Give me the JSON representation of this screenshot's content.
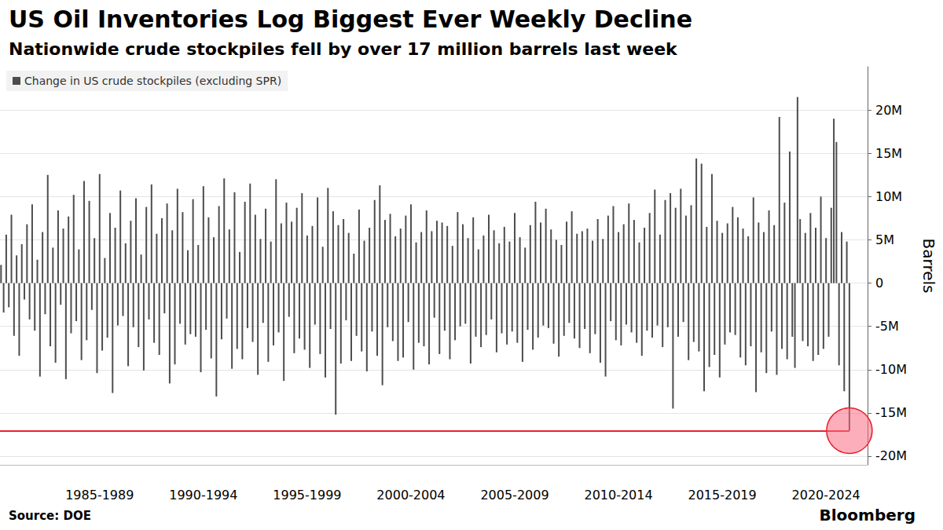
{
  "chart_data": {
    "type": "bar",
    "title": "US Oil Inventories Log Biggest Ever Weekly Decline",
    "subtitle": "Nationwide crude stockpiles fell by over 17 million barrels last week",
    "y_label": "Barrels",
    "source": "Source: DOE",
    "credit": "Bloomberg",
    "legend": "top-left",
    "grid": true,
    "xlim": [
      1982.7,
      2024.5
    ],
    "xticks": [
      {
        "value": 1987.5,
        "label": "1985-1989"
      },
      {
        "value": 1992.5,
        "label": "1990-1994"
      },
      {
        "value": 1997.5,
        "label": "1995-1999"
      },
      {
        "value": 2002.5,
        "label": "2000-2004"
      },
      {
        "value": 2007.5,
        "label": "2005-2009"
      },
      {
        "value": 2012.5,
        "label": "2010-2014"
      },
      {
        "value": 2017.5,
        "label": "2015-2019"
      },
      {
        "value": 2022.5,
        "label": "2020-2024"
      }
    ],
    "ylim": [
      -21000000,
      25000000
    ],
    "yticks": [
      {
        "value": -20000000,
        "label": "-20M"
      },
      {
        "value": -15000000,
        "label": "-15M"
      },
      {
        "value": -10000000,
        "label": "-10M"
      },
      {
        "value": -5000000,
        "label": "-5M"
      },
      0,
      {
        "value": 5000000,
        "label": "5M"
      },
      {
        "value": 10000000,
        "label": "10M"
      },
      {
        "value": 15000000,
        "label": "15M"
      },
      {
        "value": 20000000,
        "label": "20M"
      }
    ],
    "x": [
      1982.75,
      1982.875,
      1983.0,
      1983.125,
      1983.25,
      1983.375,
      1983.5,
      1983.625,
      1983.75,
      1983.875,
      1984.0,
      1984.125,
      1984.25,
      1984.375,
      1984.5,
      1984.625,
      1984.75,
      1984.875,
      1985.0,
      1985.125,
      1985.25,
      1985.375,
      1985.5,
      1985.625,
      1985.75,
      1985.875,
      1986.0,
      1986.125,
      1986.25,
      1986.375,
      1986.5,
      1986.625,
      1986.75,
      1986.875,
      1987.0,
      1987.125,
      1987.25,
      1987.375,
      1987.5,
      1987.625,
      1987.75,
      1987.875,
      1988.0,
      1988.125,
      1988.25,
      1988.375,
      1988.5,
      1988.625,
      1988.75,
      1988.875,
      1989.0,
      1989.125,
      1989.25,
      1989.375,
      1989.5,
      1989.625,
      1989.75,
      1989.875,
      1990.0,
      1990.125,
      1990.25,
      1990.375,
      1990.5,
      1990.625,
      1990.75,
      1990.875,
      1991.0,
      1991.125,
      1991.25,
      1991.375,
      1991.5,
      1991.625,
      1991.75,
      1991.875,
      1992.0,
      1992.125,
      1992.25,
      1992.375,
      1992.5,
      1992.625,
      1992.75,
      1992.875,
      1993.0,
      1993.125,
      1993.25,
      1993.375,
      1993.5,
      1993.625,
      1993.75,
      1993.875,
      1994.0,
      1994.125,
      1994.25,
      1994.375,
      1994.5,
      1994.625,
      1994.75,
      1994.875,
      1995.0,
      1995.125,
      1995.25,
      1995.375,
      1995.5,
      1995.625,
      1995.75,
      1995.875,
      1996.0,
      1996.125,
      1996.25,
      1996.375,
      1996.5,
      1996.625,
      1996.75,
      1996.875,
      1997.0,
      1997.125,
      1997.25,
      1997.375,
      1997.5,
      1997.625,
      1997.75,
      1997.875,
      1998.0,
      1998.125,
      1998.25,
      1998.375,
      1998.5,
      1998.625,
      1998.75,
      1998.875,
      1999.0,
      1999.125,
      1999.25,
      1999.375,
      1999.5,
      1999.625,
      1999.75,
      1999.875,
      2000.0,
      2000.125,
      2000.25,
      2000.375,
      2000.5,
      2000.625,
      2000.75,
      2000.875,
      2001.0,
      2001.125,
      2001.25,
      2001.375,
      2001.5,
      2001.625,
      2001.75,
      2001.875,
      2002.0,
      2002.125,
      2002.25,
      2002.375,
      2002.5,
      2002.625,
      2002.75,
      2002.875,
      2003.0,
      2003.125,
      2003.25,
      2003.375,
      2003.5,
      2003.625,
      2003.75,
      2003.875,
      2004.0,
      2004.125,
      2004.25,
      2004.375,
      2004.5,
      2004.625,
      2004.75,
      2004.875,
      2005.0,
      2005.125,
      2005.25,
      2005.375,
      2005.5,
      2005.625,
      2005.75,
      2005.875,
      2006.0,
      2006.125,
      2006.25,
      2006.375,
      2006.5,
      2006.625,
      2006.75,
      2006.875,
      2007.0,
      2007.125,
      2007.25,
      2007.375,
      2007.5,
      2007.625,
      2007.75,
      2007.875,
      2008.0,
      2008.125,
      2008.25,
      2008.375,
      2008.5,
      2008.625,
      2008.75,
      2008.875,
      2009.0,
      2009.125,
      2009.25,
      2009.375,
      2009.5,
      2009.625,
      2009.75,
      2009.875,
      2010.0,
      2010.125,
      2010.25,
      2010.375,
      2010.5,
      2010.625,
      2010.75,
      2010.875,
      2011.0,
      2011.125,
      2011.25,
      2011.375,
      2011.5,
      2011.625,
      2011.75,
      2011.875,
      2012.0,
      2012.125,
      2012.25,
      2012.375,
      2012.5,
      2012.625,
      2012.75,
      2012.875,
      2013.0,
      2013.125,
      2013.25,
      2013.375,
      2013.5,
      2013.625,
      2013.75,
      2013.875,
      2014.0,
      2014.125,
      2014.25,
      2014.375,
      2014.5,
      2014.625,
      2014.75,
      2014.875,
      2015.0,
      2015.125,
      2015.25,
      2015.375,
      2015.5,
      2015.625,
      2015.75,
      2015.875,
      2016.0,
      2016.125,
      2016.25,
      2016.375,
      2016.5,
      2016.625,
      2016.75,
      2016.875,
      2017.0,
      2017.125,
      2017.25,
      2017.375,
      2017.5,
      2017.625,
      2017.75,
      2017.875,
      2018.0,
      2018.125,
      2018.25,
      2018.375,
      2018.5,
      2018.625,
      2018.75,
      2018.875,
      2019.0,
      2019.125,
      2019.25,
      2019.375,
      2019.5,
      2019.625,
      2019.75,
      2019.875,
      2020.0,
      2020.125,
      2020.25,
      2020.375,
      2020.5,
      2020.625,
      2020.75,
      2020.875,
      2021.0,
      2021.125,
      2021.25,
      2021.375,
      2021.5,
      2021.625,
      2021.75,
      2021.875,
      2022.0,
      2022.125,
      2022.25,
      2022.375,
      2022.5,
      2022.625,
      2022.75,
      2022.875,
      2023.0,
      2023.125,
      2023.25,
      2023.375,
      2023.5,
      2023.625
    ],
    "series": [
      {
        "name": "Change in US crude stockpiles (excluding SPR)",
        "color": "#4d4d4d",
        "values": [
          2100000,
          -3400000,
          5600000,
          -2800000,
          7900000,
          -6100000,
          3200000,
          -8400000,
          4500000,
          -1900000,
          6800000,
          -4200000,
          9100000,
          -5500000,
          2700000,
          -10800000,
          5900000,
          -3600000,
          12500000,
          -7300000,
          4100000,
          -9200000,
          8400000,
          -2500000,
          6300000,
          -11100000,
          7700000,
          -5800000,
          10200000,
          -4400000,
          3900000,
          -8900000,
          11800000,
          -6600000,
          9500000,
          -3100000,
          5200000,
          -10400000,
          12600000,
          -7800000,
          2900000,
          -6300000,
          8100000,
          -12700000,
          6400000,
          -4900000,
          10700000,
          -3800000,
          4600000,
          -9600000,
          7200000,
          -5100000,
          9800000,
          -7400000,
          3300000,
          -10100000,
          8800000,
          -4200000,
          11400000,
          -6900000,
          5700000,
          -8300000,
          7500000,
          -3500000,
          9200000,
          -11600000,
          6100000,
          -9400000,
          10900000,
          -4700000,
          8200000,
          -7100000,
          3800000,
          -5900000,
          9700000,
          -6200000,
          4400000,
          -10300000,
          11200000,
          -5400000,
          7600000,
          -8700000,
          5300000,
          -13100000,
          8900000,
          -6500000,
          12100000,
          -4100000,
          6200000,
          -9900000,
          10500000,
          -7600000,
          3600000,
          -8800000,
          9400000,
          -5200000,
          11500000,
          -6800000,
          7900000,
          -10600000,
          5100000,
          -4600000,
          8600000,
          -9100000,
          4800000,
          -7200000,
          12000000,
          -5700000,
          6900000,
          -11300000,
          9300000,
          -3900000,
          7100000,
          -8100000,
          8700000,
          -6400000,
          10400000,
          -7700000,
          5500000,
          -9800000,
          6600000,
          -4800000,
          9900000,
          -8200000,
          4200000,
          -10900000,
          11000000,
          -5300000,
          8300000,
          -15200000,
          6700000,
          -9300000,
          7400000,
          -4300000,
          5800000,
          -9000000,
          3400000,
          -6100000,
          8500000,
          -7900000,
          4900000,
          -10200000,
          6400000,
          -5600000,
          9600000,
          -8400000,
          11300000,
          -11800000,
          7300000,
          -5100000,
          8000000,
          -6700000,
          5400000,
          -9000000,
          6300000,
          -8600000,
          7800000,
          -4500000,
          9100000,
          -10000000,
          4700000,
          -6900000,
          5900000,
          -7300000,
          8400000,
          -9400000,
          6000000,
          -4000000,
          7200000,
          -8200000,
          7000000,
          -5500000,
          6600000,
          -8800000,
          4300000,
          -6600000,
          8200000,
          -5000000,
          6800000,
          -4700000,
          5200000,
          -9300000,
          7600000,
          -6200000,
          3900000,
          -7400000,
          5500000,
          -6000000,
          7900000,
          -4200000,
          6100000,
          -8000000,
          4600000,
          -5800000,
          6500000,
          -7100000,
          4800000,
          -5600000,
          8100000,
          -6900000,
          5300000,
          -9100000,
          4100000,
          -5400000,
          6700000,
          -7700000,
          9400000,
          -6300000,
          7000000,
          -4900000,
          8600000,
          -5200000,
          6200000,
          -7000000,
          5000000,
          -8500000,
          4400000,
          -6100000,
          7100000,
          -4600000,
          8300000,
          -6400000,
          5700000,
          -7500000,
          6000000,
          -5300000,
          6300000,
          -8100000,
          4900000,
          -5900000,
          7400000,
          -9200000,
          5100000,
          -10800000,
          7800000,
          -4400000,
          8900000,
          -6600000,
          5900000,
          -7200000,
          6800000,
          -4800000,
          9200000,
          -5700000,
          7300000,
          -6900000,
          4700000,
          -8400000,
          6400000,
          -5500000,
          8100000,
          -6300000,
          10800000,
          -4900000,
          5600000,
          -7400000,
          9600000,
          -5100000,
          10400000,
          -14500000,
          8700000,
          -6200000,
          10900000,
          -4500000,
          7800000,
          -8900000,
          9000000,
          -6800000,
          14400000,
          -7900000,
          13800000,
          -12500000,
          6500000,
          -9700000,
          12600000,
          -8300000,
          7200000,
          -10900000,
          5800000,
          -7100000,
          6900000,
          -5700000,
          8800000,
          -6000000,
          7600000,
          -8600000,
          6300000,
          -9500000,
          5400000,
          -7300000,
          9900000,
          -12600000,
          7000000,
          -8000000,
          5900000,
          -10400000,
          8400000,
          -5600000,
          6700000,
          -10600000,
          19200000,
          -7600000,
          9300000,
          -8800000,
          15200000,
          -6200000,
          -9800000,
          21500000,
          7400000,
          -6700000,
          5800000,
          -7300000,
          8100000,
          -9000000,
          6400000,
          -8300000,
          10000000,
          -7600000,
          5200000,
          -6200000,
          8700000,
          19000000,
          16300000,
          -9500000,
          5900000,
          -12500000,
          4800000,
          -17050000
        ]
      }
    ]
  }
}
